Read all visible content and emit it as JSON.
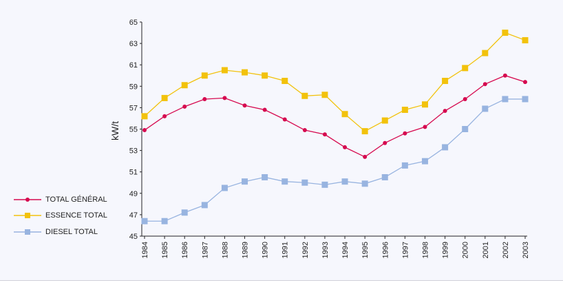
{
  "chart_data": {
    "type": "line",
    "title": "",
    "xlabel": "",
    "ylabel": "kW/t",
    "ylim": [
      45,
      65
    ],
    "yticks": [
      45,
      47,
      49,
      51,
      53,
      55,
      57,
      59,
      61,
      63,
      65
    ],
    "x": [
      "1984",
      "1985",
      "1986",
      "1987",
      "1988",
      "1989",
      "1990",
      "1991",
      "1992",
      "1993",
      "1994",
      "1995",
      "1996",
      "1997",
      "1998",
      "1999",
      "2000",
      "2001",
      "2002",
      "2003"
    ],
    "legend_position": "left",
    "series": [
      {
        "name": "TOTAL GÉNÉRAL",
        "color": "#d6094f",
        "marker": "circle",
        "values": [
          54.9,
          56.2,
          57.1,
          57.8,
          57.9,
          57.2,
          56.8,
          55.9,
          54.9,
          54.5,
          53.3,
          52.4,
          53.7,
          54.6,
          55.2,
          56.7,
          57.8,
          59.2,
          60.0,
          59.4
        ]
      },
      {
        "name": "ESSENCE TOTAL",
        "color": "#f2c20c",
        "marker": "square",
        "values": [
          56.2,
          57.9,
          59.1,
          60.0,
          60.5,
          60.3,
          60.0,
          59.5,
          58.1,
          58.2,
          56.4,
          54.8,
          55.8,
          56.8,
          57.3,
          59.5,
          60.7,
          62.1,
          64.0,
          63.3
        ]
      },
      {
        "name": "DIESEL TOTAL",
        "color": "#98b4e0",
        "marker": "square",
        "values": [
          46.4,
          46.4,
          47.2,
          47.9,
          49.5,
          50.1,
          50.5,
          50.1,
          50.0,
          49.8,
          50.1,
          49.9,
          50.5,
          51.6,
          52.0,
          53.3,
          55.0,
          56.9,
          57.8,
          57.8
        ]
      }
    ]
  }
}
